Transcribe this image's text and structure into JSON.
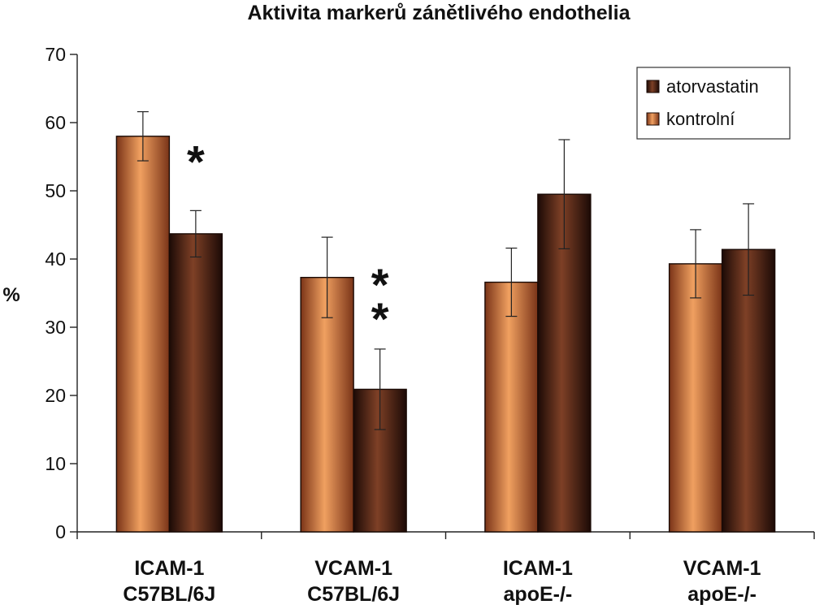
{
  "chart_data": {
    "type": "bar",
    "title": "Aktivita markerů zánětlivého endothelia",
    "ylabel": "%",
    "ylim": [
      0,
      70
    ],
    "yticks": [
      0,
      10,
      20,
      30,
      40,
      50,
      60,
      70
    ],
    "categories": [
      [
        "ICAM-1",
        "C57BL/6J"
      ],
      [
        "VCAM-1",
        "C57BL/6J"
      ],
      [
        "ICAM-1",
        "apoE-/-"
      ],
      [
        "VCAM-1",
        "apoE-/-"
      ]
    ],
    "series": [
      {
        "name": "kontrolní",
        "color": "#d9843f",
        "values": [
          58,
          37.3,
          36.6,
          39.3
        ],
        "errors": [
          3.6,
          5.9,
          5.0,
          5.0
        ]
      },
      {
        "name": "atorvastatin",
        "color": "#5a2a1c",
        "values": [
          43.7,
          20.9,
          49.5,
          41.4
        ],
        "errors": [
          3.4,
          5.9,
          8.0,
          6.7
        ]
      }
    ],
    "legend": {
      "placement": "top-right",
      "order": [
        "atorvastatin",
        "kontrolní"
      ]
    },
    "annotations": [
      {
        "text": "*",
        "category": 0,
        "y": 56
      },
      {
        "text": "*",
        "category": 1,
        "y": 38
      },
      {
        "text": "*",
        "category": 1,
        "y": 33
      }
    ],
    "grid": false
  }
}
